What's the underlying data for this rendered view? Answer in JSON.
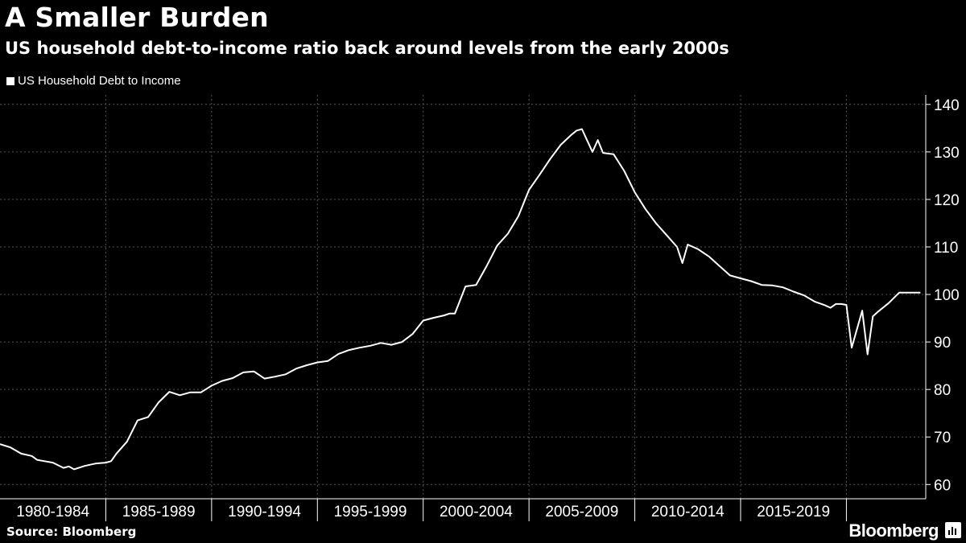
{
  "title": "A Smaller Burden",
  "subtitle": "US household debt-to-income ratio back around levels from the early 2000s",
  "source": "Source: Bloomberg",
  "brand": "Bloomberg",
  "brand_icon": "bloomberg-terminal-icon",
  "colors": {
    "background": "#000000",
    "line": "#ffffff",
    "grid": "#555555"
  },
  "chart_data": {
    "type": "line",
    "title": "A Smaller Burden",
    "subtitle": "US household debt-to-income ratio back around levels from the early 2000s",
    "legend": "top-left",
    "grid": true,
    "ylim": [
      57,
      142
    ],
    "yticks": [
      60,
      70,
      80,
      90,
      100,
      110,
      120,
      130,
      140
    ],
    "xlim": [
      1980.0,
      2023.75
    ],
    "xticks": [
      {
        "label": "1980-1984",
        "x": 1982.5
      },
      {
        "label": "1985-1989",
        "x": 1987.5
      },
      {
        "label": "1990-1994",
        "x": 1992.5
      },
      {
        "label": "1995-1999",
        "x": 1997.5
      },
      {
        "label": "2000-2004",
        "x": 2002.5
      },
      {
        "label": "2005-2009",
        "x": 2007.5
      },
      {
        "label": "2010-2014",
        "x": 2012.5
      },
      {
        "label": "2015-2019",
        "x": 2017.5
      }
    ],
    "series": [
      {
        "name": "US Household Debt to Income",
        "x": [
          1980.0,
          1980.5,
          1981.0,
          1981.5,
          1981.75,
          1982.0,
          1982.5,
          1983.0,
          1983.25,
          1983.5,
          1984.0,
          1984.5,
          1985.0,
          1985.25,
          1985.5,
          1986.0,
          1986.5,
          1987.0,
          1987.5,
          1988.0,
          1988.5,
          1989.0,
          1989.5,
          1990.0,
          1990.5,
          1991.0,
          1991.5,
          1992.0,
          1992.5,
          1993.0,
          1993.5,
          1994.0,
          1994.5,
          1995.0,
          1995.5,
          1996.0,
          1996.5,
          1997.0,
          1997.5,
          1998.0,
          1998.5,
          1999.0,
          1999.5,
          2000.0,
          2000.5,
          2001.0,
          2001.25,
          2001.5,
          2002.0,
          2002.5,
          2003.0,
          2003.5,
          2004.0,
          2004.5,
          2005.0,
          2005.5,
          2006.0,
          2006.5,
          2007.0,
          2007.25,
          2007.5,
          2008.0,
          2008.25,
          2008.5,
          2009.0,
          2009.5,
          2010.0,
          2010.5,
          2011.0,
          2011.5,
          2012.0,
          2012.25,
          2012.5,
          2013.0,
          2013.5,
          2014.0,
          2014.5,
          2015.0,
          2015.5,
          2016.0,
          2016.5,
          2017.0,
          2017.5,
          2018.0,
          2018.5,
          2019.0,
          2019.25,
          2019.5,
          2019.75,
          2020.0,
          2020.25,
          2020.75,
          2021.0,
          2021.25,
          2021.5,
          2022.0,
          2022.5,
          2023.0,
          2023.5
        ],
        "values": [
          68.5,
          67.8,
          66.5,
          66.0,
          65.2,
          65.0,
          64.6,
          63.5,
          63.8,
          63.2,
          63.9,
          64.4,
          64.6,
          64.9,
          66.5,
          69.0,
          73.5,
          74.2,
          77.3,
          79.5,
          78.8,
          79.4,
          79.4,
          80.8,
          81.8,
          82.4,
          83.6,
          83.8,
          82.3,
          82.7,
          83.2,
          84.4,
          85.1,
          85.7,
          86.0,
          87.5,
          88.3,
          88.8,
          89.2,
          89.8,
          89.4,
          90.0,
          91.7,
          94.5,
          95.1,
          95.6,
          96.0,
          96.0,
          101.7,
          102.0,
          106.0,
          110.3,
          112.8,
          116.5,
          122.0,
          125.2,
          128.5,
          131.5,
          133.6,
          134.5,
          134.8,
          130.0,
          132.5,
          129.8,
          129.5,
          126.0,
          121.5,
          118.0,
          115.0,
          112.5,
          110.0,
          106.6,
          110.5,
          109.5,
          108.0,
          106.0,
          104.0,
          103.4,
          102.8,
          102.0,
          101.9,
          101.5,
          100.6,
          99.8,
          98.5,
          97.7,
          97.2,
          98.0,
          98.0,
          97.8,
          88.8,
          96.6,
          87.4,
          95.4,
          96.4,
          98.2,
          100.4,
          100.4,
          100.4
        ]
      }
    ]
  }
}
